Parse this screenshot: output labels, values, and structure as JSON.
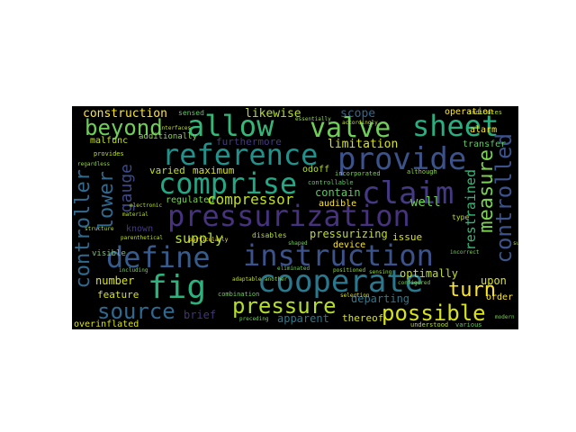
{
  "figure": {
    "type": "word-cloud",
    "background": "#000000",
    "palette": [
      "#440154",
      "#46327e",
      "#365c8d",
      "#277f8e",
      "#1fa187",
      "#4ac16d",
      "#a0da39",
      "#fde725"
    ]
  },
  "words": {
    "pressurization": "pressurization",
    "instruction": "instruction",
    "define": "define",
    "cooperate": "cooperate",
    "provide": "provide",
    "comprise": "comprise",
    "reference": "reference",
    "allow": "allow",
    "sheet": "sheet",
    "claim": "claim",
    "valve": "valve",
    "fig": "fig",
    "pressure": "pressure",
    "possible": "possible",
    "source": "source",
    "turn": "turn",
    "beyond": "beyond",
    "controller": "controller",
    "gauge": "gauge",
    "lower": "lower",
    "measure": "measure",
    "controlled": "controlled",
    "restrained": "restrained",
    "compressor": "compressor",
    "supply": "supply",
    "construction": "construction",
    "likewise": "likewise",
    "scope": "scope",
    "operation": "operation",
    "limitation": "limitation",
    "furthermore": "furthermore",
    "varied": "varied",
    "maximum": "maximum",
    "regulated": "regulated",
    "known": "known",
    "contain": "contain",
    "audible": "audible",
    "well": "well",
    "pressurizing": "pressurizing",
    "issue": "issue",
    "device": "device",
    "optimally": "optimally",
    "upon": "upon",
    "order": "order",
    "number": "number",
    "feature": "feature",
    "departing": "departing",
    "brief": "brief",
    "apparent": "apparent",
    "thereof": "thereof",
    "overinflated": "overinflated",
    "alarm": "alarm",
    "transfer": "transfer",
    "malfunc": "malfunc",
    "additionally": "additionally",
    "odoff": "odoff",
    "sensed": "sensed",
    "visible": "visible",
    "disables": "disables",
    "incorporated": "incorporated",
    "combination": "combination",
    "understood": "understood",
    "various": "various",
    "indicates": "indicates",
    "selection": "selection",
    "particularly": "particularly",
    "essentially": "essentially",
    "accordingly": "accordingly",
    "although": "although",
    "type": "type",
    "incorrect": "incorrect",
    "electronic": "electronic",
    "preceding": "preceding",
    "controllable": "controllable",
    "provides": "provides",
    "positioned": "positioned",
    "configured": "configured",
    "suitable": "suitable",
    "adaptable": "adaptable",
    "another": "another",
    "shaped": "shaped",
    "structure": "structure",
    "including": "including",
    "interfaces": "interfaces",
    "regardless": "regardless",
    "material": "material",
    "eliminated": "eliminated",
    "parenthetical": "parenthetical",
    "sensing": "sensing",
    "modern": "modern"
  }
}
